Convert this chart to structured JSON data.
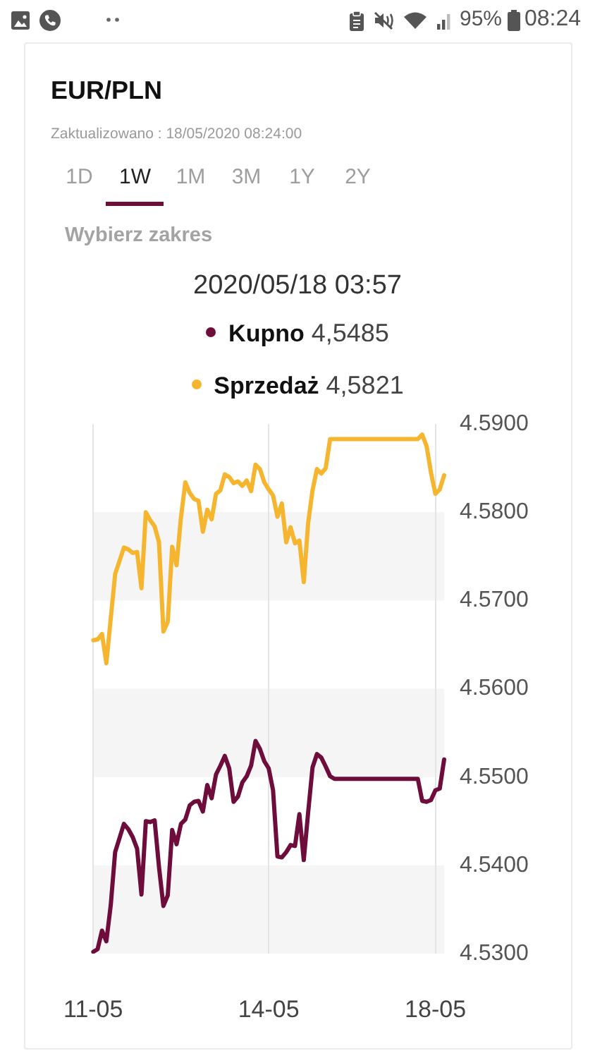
{
  "chart_data": {
    "type": "line",
    "title": "EUR/PLN",
    "subtitle": "Zaktualizowano : 18/05/2020 08:24:00",
    "annotations": [
      "95%",
      "08:24",
      "1D",
      "1W",
      "1M",
      "3M",
      "1Y",
      "2Y",
      "Wybierz zakres",
      "2020/05/18 03:57",
      "4,5485",
      "4,5821"
    ],
    "categories": [
      "11-05",
      null,
      null,
      null,
      null,
      null,
      null,
      null,
      null,
      null,
      null,
      null,
      null,
      null,
      null,
      null,
      null,
      null,
      null,
      null,
      null,
      null,
      null,
      null,
      null,
      null,
      null,
      null,
      null,
      null,
      null,
      null,
      null,
      null,
      null,
      null,
      null,
      null,
      null,
      null,
      "14-05",
      null,
      null,
      null,
      null,
      null,
      null,
      null,
      null,
      null,
      null,
      null,
      null,
      null,
      null,
      null,
      null,
      null,
      null,
      null,
      null,
      null,
      null,
      null,
      null,
      null,
      null,
      null,
      null,
      null,
      null,
      null,
      null,
      null,
      null,
      null,
      null,
      null,
      "18-05",
      null,
      null
    ],
    "series": [
      {
        "name": "Kupno",
        "color": "#6e0d3c",
        "values": [
          4.5302,
          4.5305,
          4.5326,
          4.5314,
          4.5355,
          4.5415,
          4.5431,
          4.5447,
          4.5441,
          4.5432,
          4.5419,
          4.5367,
          4.545,
          4.5449,
          4.5451,
          4.5398,
          4.5354,
          4.5366,
          4.544,
          4.5424,
          4.5447,
          4.5452,
          4.5468,
          4.5472,
          4.5473,
          4.5461,
          4.5491,
          4.5476,
          4.5503,
          4.5513,
          4.5524,
          4.551,
          4.5472,
          4.5478,
          4.5494,
          4.5501,
          4.5513,
          4.5541,
          4.5532,
          4.5518,
          4.551,
          4.5485,
          4.541,
          4.5409,
          4.5415,
          4.5423,
          4.5422,
          4.5458,
          4.5406,
          4.546,
          4.5511,
          4.5526,
          4.5522,
          4.5512,
          4.5501,
          4.5498,
          4.5498,
          4.5498,
          4.5498,
          4.5498,
          4.5498,
          4.5498,
          4.5498,
          4.5498,
          4.5498,
          4.5498,
          4.5498,
          4.5498,
          4.5498,
          4.5498,
          4.5498,
          4.5498,
          4.5498,
          4.5498,
          4.5498,
          4.5473,
          4.5472,
          4.5474,
          4.5485,
          4.5487,
          4.552
        ]
      },
      {
        "name": "Sprzedaż",
        "color": "#f6b52e",
        "values": [
          4.5655,
          4.5656,
          4.5662,
          4.5629,
          4.568,
          4.573,
          4.5745,
          4.576,
          4.5758,
          4.5754,
          4.5755,
          4.5714,
          4.58,
          4.5791,
          4.5784,
          4.5766,
          4.5665,
          4.5676,
          4.5761,
          4.574,
          4.5794,
          4.5834,
          4.5822,
          4.5815,
          4.5813,
          4.5778,
          4.5803,
          4.5792,
          4.5821,
          4.5825,
          4.5843,
          4.584,
          4.5833,
          4.5835,
          4.583,
          4.5836,
          4.5824,
          4.5854,
          4.5849,
          4.5834,
          4.5826,
          4.5819,
          4.5795,
          4.581,
          4.5766,
          4.5783,
          4.5765,
          4.5768,
          4.5721,
          4.5788,
          4.5825,
          4.5849,
          4.5844,
          4.585,
          4.5883,
          4.5883,
          4.5883,
          4.5883,
          4.5883,
          4.5883,
          4.5883,
          4.5883,
          4.5883,
          4.5883,
          4.5883,
          4.5883,
          4.5883,
          4.5883,
          4.5883,
          4.5883,
          4.5883,
          4.5883,
          4.5883,
          4.5883,
          4.5883,
          4.5888,
          4.5875,
          4.5845,
          4.5821,
          4.5826,
          4.5842
        ]
      }
    ],
    "ylim": [
      4.53,
      4.59
    ],
    "yticks": [
      {
        "value": 4.53,
        "label": "4.5300"
      },
      {
        "value": 4.54,
        "label": "4.5400"
      },
      {
        "value": 4.55,
        "label": "4.5500"
      },
      {
        "value": 4.56,
        "label": "4.5600"
      },
      {
        "value": 4.57,
        "label": "4.5700"
      },
      {
        "value": 4.58,
        "label": "4.5800"
      },
      {
        "value": 4.59,
        "label": "4.5900"
      }
    ],
    "grid": "x",
    "legend": "top",
    "bands": [
      {
        "axis": "y",
        "from": 4.57,
        "to": 4.58,
        "color": "#f5f5f5"
      },
      {
        "axis": "y",
        "from": 4.55,
        "to": 4.56,
        "color": "#f5f5f5"
      },
      {
        "axis": "y",
        "from": 4.53,
        "to": 4.54,
        "color": "#f5f5f5"
      }
    ]
  }
}
